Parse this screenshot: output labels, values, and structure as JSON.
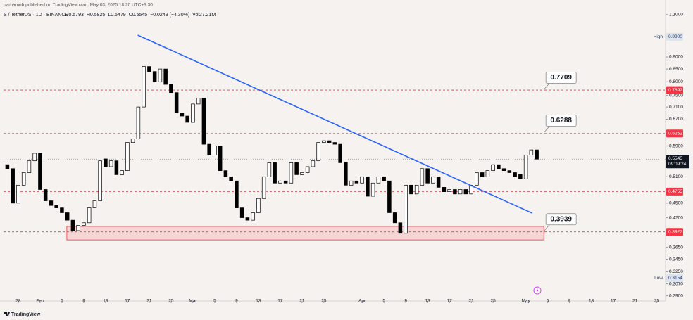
{
  "header": {
    "author_line": "parhamnb published on TradingView.com, May 03, 2025 18:20 UTC+3:30",
    "symbol": "S / TetherUS · 1D · BINANCE",
    "ohlc": [
      "O0.5793",
      "H0.5825",
      "L0.5479",
      "C0.5545",
      "−0.0249 (−4.30%)",
      "Vol27.21M"
    ],
    "brand": "TradingView"
  },
  "chart_data": {
    "type": "candlestick",
    "x": [
      26,
      27,
      28,
      29,
      30,
      31,
      32,
      33,
      34,
      35,
      36,
      37,
      38,
      39,
      40,
      41,
      42,
      43,
      44,
      45,
      46,
      47,
      48,
      49,
      50,
      51,
      52,
      53,
      54,
      55,
      56,
      57,
      58,
      59,
      60,
      61,
      62,
      63,
      64,
      65,
      66,
      67,
      68,
      69,
      70,
      71,
      72,
      73,
      74,
      75,
      76,
      77,
      78,
      79,
      80,
      81,
      82,
      83,
      84,
      85,
      86,
      87,
      88,
      89,
      90,
      91,
      92,
      93,
      94,
      95,
      96,
      97,
      98,
      99,
      100,
      101,
      102,
      103,
      104,
      105,
      106,
      107,
      108,
      109,
      110,
      111,
      112,
      113,
      114,
      115,
      116,
      117,
      118,
      119,
      120,
      121,
      122,
      123
    ],
    "open": [
      0.54,
      0.53,
      0.45,
      0.49,
      0.52,
      0.55,
      0.57,
      0.48,
      0.455,
      0.445,
      0.44,
      0.43,
      0.415,
      0.395,
      0.405,
      0.41,
      0.44,
      0.455,
      0.555,
      0.535,
      0.55,
      0.515,
      0.525,
      0.6,
      0.61,
      0.71,
      0.86,
      0.84,
      0.8,
      0.85,
      0.79,
      0.76,
      0.69,
      0.68,
      0.66,
      0.72,
      0.74,
      0.595,
      0.565,
      0.59,
      0.525,
      0.51,
      0.5,
      0.44,
      0.42,
      0.415,
      0.43,
      0.46,
      0.51,
      0.545,
      0.495,
      0.5,
      0.495,
      0.545,
      0.515,
      0.52,
      0.535,
      0.55,
      0.6,
      0.605,
      0.6,
      0.595,
      0.545,
      0.49,
      0.5,
      0.495,
      0.51,
      0.465,
      0.495,
      0.51,
      0.5,
      0.43,
      0.41,
      0.39,
      0.49,
      0.47,
      0.49,
      0.53,
      0.495,
      0.51,
      0.485,
      0.475,
      0.48,
      0.47,
      0.48,
      0.47,
      0.49,
      0.52,
      0.51,
      0.525,
      0.54,
      0.53,
      0.525,
      0.52,
      0.515,
      0.505,
      0.565,
      0.5793
    ],
    "high": {
      "value": 0.99,
      "label": "0.9900"
    },
    "low": 0.3154,
    "close": [
      0.53,
      0.45,
      0.49,
      0.52,
      0.55,
      0.57,
      0.48,
      0.455,
      0.445,
      0.44,
      0.43,
      0.415,
      0.395,
      0.405,
      0.41,
      0.44,
      0.455,
      0.55,
      0.535,
      0.55,
      0.515,
      0.525,
      0.6,
      0.61,
      0.71,
      0.86,
      0.84,
      0.8,
      0.85,
      0.79,
      0.76,
      0.69,
      0.68,
      0.66,
      0.72,
      0.74,
      0.595,
      0.565,
      0.59,
      0.525,
      0.51,
      0.5,
      0.44,
      0.42,
      0.415,
      0.43,
      0.46,
      0.51,
      0.545,
      0.495,
      0.5,
      0.495,
      0.545,
      0.515,
      0.52,
      0.535,
      0.55,
      0.6,
      0.605,
      0.6,
      0.595,
      0.545,
      0.49,
      0.5,
      0.495,
      0.51,
      0.465,
      0.495,
      0.51,
      0.5,
      0.43,
      0.41,
      0.39,
      0.49,
      0.47,
      0.49,
      0.53,
      0.495,
      0.51,
      0.485,
      0.475,
      0.48,
      0.47,
      0.48,
      0.47,
      0.49,
      0.52,
      0.51,
      0.525,
      0.54,
      0.53,
      0.525,
      0.52,
      0.51,
      0.505,
      0.565,
      0.5793,
      0.5545
    ],
    "up_color": "#ffffff",
    "down_color": "#000000",
    "wick_color": "#000000",
    "xlim": [
      25.3,
      146.6
    ],
    "xticks": [
      28,
      {
        "value": 32,
        "label": "Feb"
      },
      {
        "value": 36,
        "label": "5"
      },
      {
        "value": 40,
        "label": "9"
      },
      {
        "value": 44,
        "label": "13"
      },
      {
        "value": 48,
        "label": "17"
      },
      {
        "value": 52,
        "label": "21"
      },
      {
        "value": 56,
        "label": "25"
      },
      {
        "value": 60,
        "label": "Mar"
      },
      {
        "value": 64,
        "label": "5"
      },
      {
        "value": 68,
        "label": "9"
      },
      {
        "value": 72,
        "label": "13"
      },
      {
        "value": 76,
        "label": "17"
      },
      {
        "value": 80,
        "label": "21"
      },
      {
        "value": 84,
        "label": "25"
      },
      {
        "value": 91,
        "label": "Apr"
      },
      {
        "value": 95,
        "label": "5"
      },
      {
        "value": 99,
        "label": "9"
      },
      {
        "value": 103,
        "label": "13"
      },
      {
        "value": 107,
        "label": "17"
      },
      {
        "value": 111,
        "label": "21"
      },
      {
        "value": 115,
        "label": "25"
      },
      {
        "value": 121,
        "label": "May"
      },
      {
        "value": 125,
        "label": "5"
      },
      {
        "value": 129,
        "label": "9"
      },
      {
        "value": 133,
        "label": "13"
      },
      {
        "value": 137,
        "label": "17"
      },
      {
        "value": 141,
        "label": "21"
      },
      {
        "value": 145,
        "label": "25"
      }
    ],
    "ylim": [
      0.2858,
      1.1327
    ],
    "log_scale": true,
    "yticks": [
      {
        "value": 1.1,
        "label": "1.1000"
      },
      {
        "value": 0.9,
        "label": "0.9000"
      },
      {
        "value": 0.85,
        "label": "0.8500"
      },
      {
        "value": 0.8,
        "label": "0.8000"
      },
      {
        "value": 0.75,
        "label": "0.7500"
      },
      {
        "value": 0.71,
        "label": "0.7100"
      },
      {
        "value": 0.67,
        "label": "0.6700"
      },
      {
        "value": 0.63,
        "label": "0.6300"
      },
      {
        "value": 0.59,
        "label": "0.5900"
      },
      {
        "value": 0.51,
        "label": "0.5100"
      },
      {
        "value": 0.45,
        "label": "0.4500"
      },
      {
        "value": 0.42,
        "label": "0.4200"
      },
      {
        "value": 0.365,
        "label": "0.3650"
      },
      {
        "value": 0.345,
        "label": "0.3450"
      },
      {
        "value": 0.325,
        "label": "0.3250"
      },
      {
        "value": 0.307,
        "label": "0.3070"
      },
      {
        "value": 0.29,
        "label": "0.2900"
      }
    ],
    "levels": [
      0.7692,
      0.6262,
      0.4755,
      0.3927
    ],
    "level_color": "#f23645",
    "last_price": 0.5545,
    "countdown": "09:09:24",
    "high_label": "High",
    "low_label": "Low",
    "trendline": {
      "x": [
        49.9,
        122.2
      ],
      "y": [
        0.998,
        0.429
      ],
      "color": "#2962ff"
    },
    "zone": {
      "x": [
        36.9,
        124.3
      ],
      "y": [
        0.378,
        0.403
      ],
      "color": "#f23645"
    },
    "callouts": [
      0.7709,
      0.6288,
      0.3939
    ]
  }
}
